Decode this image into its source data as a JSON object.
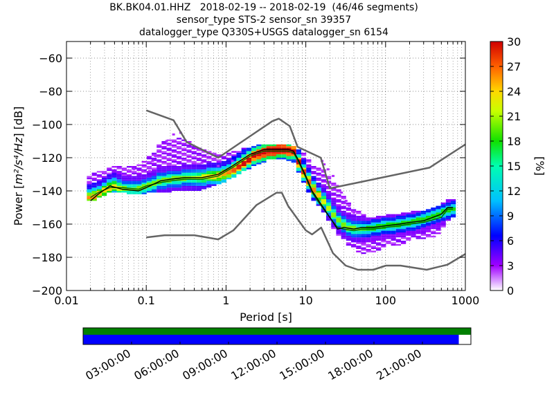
{
  "chart_data": [
    {
      "type": "heatmap",
      "title_lines": [
        "BK.BK04.01.HHZ   2018-02-19 -- 2018-02-19  (46/46 segments)",
        "sensor_type STS-2 sensor_sn 39357",
        "datalogger_type Q330S+USGS datalogger_sn 6154"
      ],
      "xlabel": "Period [s]",
      "ylabel_prefix": "Power [",
      "ylabel_unit": "m²/s⁴/Hz",
      "ylabel_suffix": "] [dB]",
      "xscale": "log",
      "xlim": [
        0.01,
        1000
      ],
      "ylim": [
        -200,
        -50
      ],
      "xticks": [
        0.01,
        0.1,
        1,
        10,
        100,
        1000
      ],
      "xtick_labels": [
        "0.01",
        "0.1",
        "1",
        "10",
        "100",
        "1000"
      ],
      "yticks": [
        -200,
        -180,
        -160,
        -140,
        -120,
        -100,
        -80,
        -60
      ],
      "ytick_labels": [
        "−200",
        "−180",
        "−160",
        "−140",
        "−120",
        "−100",
        "−80",
        "−60"
      ],
      "grid": "dotted",
      "colorbar": {
        "label": "[%]",
        "range": [
          0,
          30
        ],
        "ticks": [
          "0",
          "3",
          "6",
          "9",
          "12",
          "15",
          "18",
          "21",
          "24",
          "27",
          "30"
        ]
      },
      "noise_model_high": {
        "period": [
          0.1,
          0.22,
          0.32,
          0.8,
          3.8,
          4.6,
          6.3,
          7.9,
          15.4,
          20,
          354.8,
          1000
        ],
        "power": [
          -91.5,
          -97.4,
          -110.5,
          -120,
          -98,
          -96.5,
          -101,
          -113.5,
          -120,
          -138.5,
          -126,
          -112
        ]
      },
      "noise_model_low": {
        "period": [
          0.1,
          0.17,
          0.4,
          0.8,
          1.24,
          2.4,
          4.3,
          5,
          6,
          10,
          12,
          15.6,
          21.9,
          31.6,
          45,
          70,
          101,
          154,
          328,
          600,
          1000
        ],
        "power": [
          -168,
          -166.7,
          -166.7,
          -169.2,
          -163.7,
          -148.6,
          -141.1,
          -141.1,
          -149,
          -163.8,
          -166.2,
          -162.1,
          -177.5,
          -185,
          -187.5,
          -187.5,
          -185,
          -185,
          -187.5,
          -184.4,
          -178
        ]
      },
      "median_curve": {
        "period": [
          0.02,
          0.025,
          0.035,
          0.05,
          0.08,
          0.1,
          0.15,
          0.2,
          0.3,
          0.5,
          0.8,
          1.2,
          2,
          3,
          4,
          5,
          6,
          7,
          8,
          10,
          12,
          15,
          20,
          25,
          30,
          40,
          50,
          70,
          100,
          150,
          200,
          300,
          500,
          600,
          700
        ],
        "power": [
          -144,
          -141,
          -138,
          -138,
          -139,
          -137,
          -135,
          -134,
          -133,
          -133,
          -131,
          -126,
          -119,
          -116,
          -116,
          -116,
          -116,
          -117,
          -122,
          -132,
          -141,
          -148,
          -156,
          -162,
          -163,
          -164,
          -163,
          -163,
          -162,
          -161,
          -160,
          -159,
          -156,
          -151,
          -151
        ]
      },
      "mode_curve": {
        "period": [
          0.02,
          0.025,
          0.035,
          0.05,
          0.08,
          0.1,
          0.15,
          0.2,
          0.3,
          0.5,
          0.8,
          1.2,
          2,
          3,
          4,
          5,
          6,
          7,
          8,
          10,
          12,
          15,
          20,
          25,
          30,
          40,
          50,
          70,
          100,
          150,
          200,
          300,
          500,
          600,
          700
        ],
        "power": [
          -146,
          -142,
          -137,
          -139,
          -140,
          -138,
          -134,
          -133,
          -132,
          -132,
          -130,
          -125,
          -118,
          -115,
          -115,
          -115,
          -115,
          -116,
          -121,
          -131,
          -140,
          -147,
          -156,
          -163,
          -162,
          -163,
          -162,
          -162,
          -161,
          -160,
          -159,
          -158,
          -154,
          -150,
          -150
        ]
      },
      "psd_histogram": [
        {
          "x": 0.02,
          "y_lo": -146,
          "y_hi": -130,
          "mode": -144,
          "peak": 20
        },
        {
          "x": 0.025,
          "y_lo": -143,
          "y_hi": -128,
          "mode": -141,
          "peak": 18
        },
        {
          "x": 0.035,
          "y_lo": -140,
          "y_hi": -125,
          "mode": -137,
          "peak": 18
        },
        {
          "x": 0.05,
          "y_lo": -141,
          "y_hi": -125,
          "mode": -139,
          "peak": 14
        },
        {
          "x": 0.07,
          "y_lo": -142,
          "y_hi": -126,
          "mode": -139,
          "peak": 14
        },
        {
          "x": 0.1,
          "y_lo": -141,
          "y_hi": -120,
          "mode": -137,
          "peak": 14
        },
        {
          "x": 0.14,
          "y_lo": -141,
          "y_hi": -112,
          "mode": -134,
          "peak": 14
        },
        {
          "x": 0.2,
          "y_lo": -140,
          "y_hi": -108,
          "mode": -133,
          "peak": 14
        },
        {
          "x": 0.3,
          "y_lo": -140,
          "y_hi": -110,
          "mode": -132,
          "peak": 14
        },
        {
          "x": 0.45,
          "y_lo": -139,
          "y_hi": -115,
          "mode": -132,
          "peak": 16
        },
        {
          "x": 0.7,
          "y_lo": -136,
          "y_hi": -118,
          "mode": -131,
          "peak": 18
        },
        {
          "x": 1.0,
          "y_lo": -133,
          "y_hi": -118,
          "mode": -129,
          "peak": 20
        },
        {
          "x": 1.5,
          "y_lo": -128,
          "y_hi": -115,
          "mode": -124,
          "peak": 24
        },
        {
          "x": 2.2,
          "y_lo": -124,
          "y_hi": -113,
          "mode": -118,
          "peak": 26
        },
        {
          "x": 3.2,
          "y_lo": -121,
          "y_hi": -112,
          "mode": -116,
          "peak": 28
        },
        {
          "x": 4.5,
          "y_lo": -120,
          "y_hi": -112,
          "mode": -115,
          "peak": 28
        },
        {
          "x": 6.5,
          "y_lo": -122,
          "y_hi": -113,
          "mode": -116,
          "peak": 26
        },
        {
          "x": 9,
          "y_lo": -136,
          "y_hi": -118,
          "mode": -130,
          "peak": 22
        },
        {
          "x": 12,
          "y_lo": -146,
          "y_hi": -125,
          "mode": -140,
          "peak": 20
        },
        {
          "x": 16,
          "y_lo": -153,
          "y_hi": -128,
          "mode": -147,
          "peak": 16
        },
        {
          "x": 22,
          "y_lo": -164,
          "y_hi": -136,
          "mode": -156,
          "peak": 14
        },
        {
          "x": 30,
          "y_lo": -172,
          "y_hi": -145,
          "mode": -162,
          "peak": 14
        },
        {
          "x": 40,
          "y_lo": -176,
          "y_hi": -152,
          "mode": -163,
          "peak": 14
        },
        {
          "x": 55,
          "y_lo": -178,
          "y_hi": -156,
          "mode": -163,
          "peak": 12
        },
        {
          "x": 75,
          "y_lo": -176,
          "y_hi": -156,
          "mode": -162,
          "peak": 12
        },
        {
          "x": 100,
          "y_lo": -173,
          "y_hi": -155,
          "mode": -161,
          "peak": 12
        },
        {
          "x": 140,
          "y_lo": -172,
          "y_hi": -154,
          "mode": -160,
          "peak": 12
        },
        {
          "x": 200,
          "y_lo": -169,
          "y_hi": -153,
          "mode": -159,
          "peak": 12
        },
        {
          "x": 280,
          "y_lo": -168,
          "y_hi": -152,
          "mode": -157,
          "peak": 12
        },
        {
          "x": 400,
          "y_lo": -167,
          "y_hi": -150,
          "mode": -155,
          "peak": 12
        },
        {
          "x": 600,
          "y_lo": -156,
          "y_hi": -145,
          "mode": -151,
          "peak": 12
        }
      ],
      "psd_outliers": [
        {
          "x": 0.18,
          "y": -110
        },
        {
          "x": 0.22,
          "y": -106
        },
        {
          "x": 0.27,
          "y": -105
        },
        {
          "x": 0.13,
          "y": -119
        },
        {
          "x": 0.12,
          "y": -122
        },
        {
          "x": 0.11,
          "y": -128
        },
        {
          "x": 0.09,
          "y": -128
        },
        {
          "x": 0.07,
          "y": -127
        },
        {
          "x": 0.5,
          "y": -123
        },
        {
          "x": 0.8,
          "y": -125
        },
        {
          "x": 1.2,
          "y": -122
        },
        {
          "x": 16,
          "y": -122
        },
        {
          "x": 17,
          "y": -124
        },
        {
          "x": 19,
          "y": -127
        },
        {
          "x": 22,
          "y": -131
        },
        {
          "x": 25,
          "y": -137
        },
        {
          "x": 28,
          "y": -141
        },
        {
          "x": 32,
          "y": -146
        },
        {
          "x": 35,
          "y": -149
        },
        {
          "x": 40,
          "y": -153
        }
      ]
    },
    {
      "type": "timeline",
      "xlim_hours": [
        0,
        24
      ],
      "tick_hours": [
        3,
        6,
        9,
        12,
        15,
        18,
        21
      ],
      "tick_labels": [
        "03:00:00",
        "06:00:00",
        "09:00:00",
        "12:00:00",
        "15:00:00",
        "18:00:00",
        "21:00:00"
      ],
      "coverage_color": "#0000ff",
      "gap_color": "#ffffff",
      "data_bar_color": "#008000",
      "coverage_end_hour": 23.25
    }
  ],
  "colors": {
    "noise_model": "#646464",
    "mode": "#000000",
    "median": "#006400",
    "grid": "#000000"
  }
}
